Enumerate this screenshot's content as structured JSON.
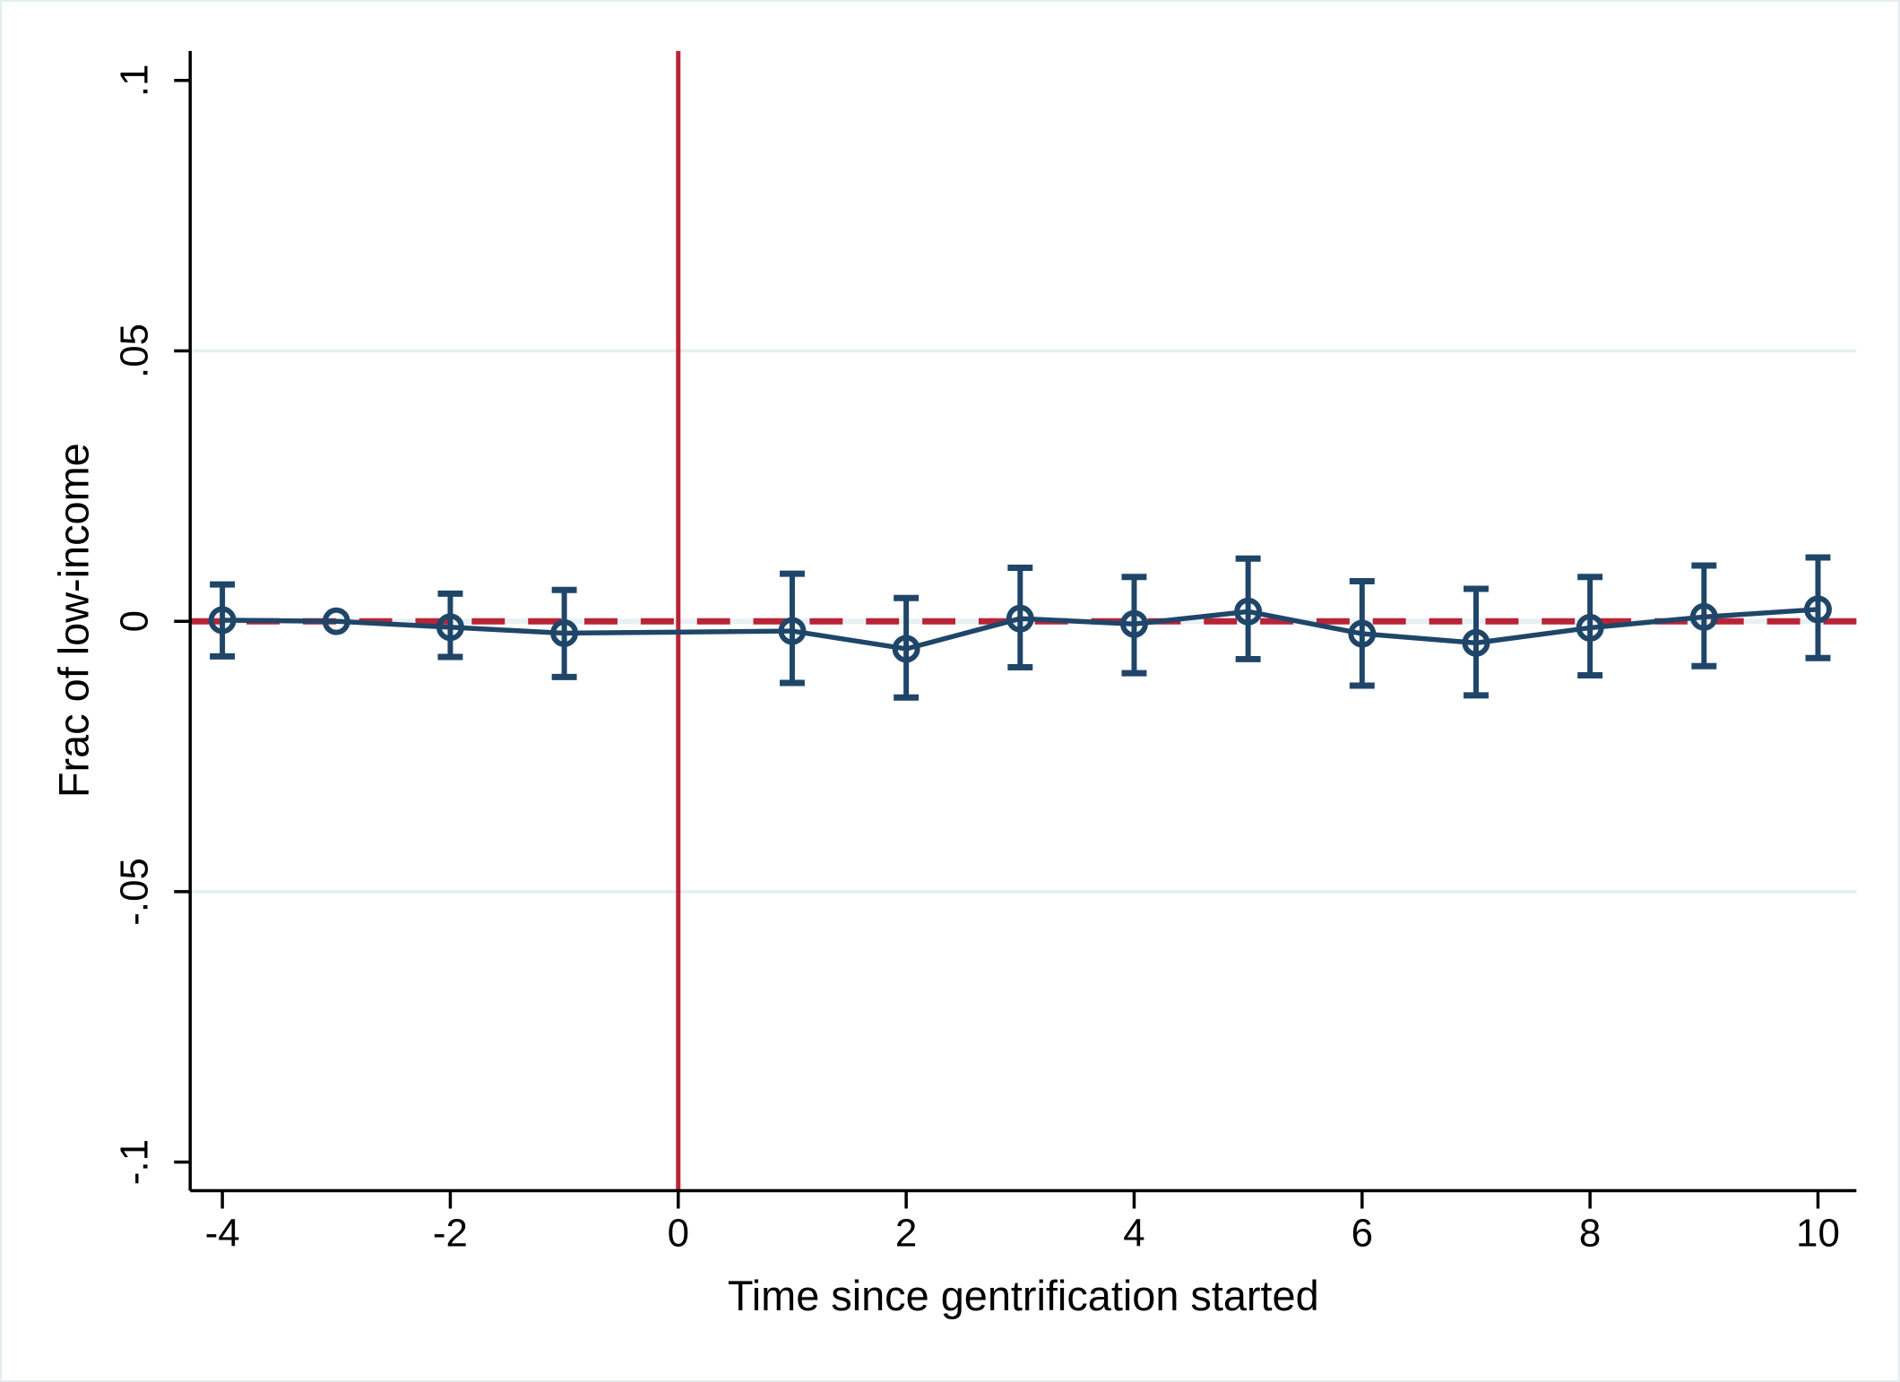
{
  "chart_data": {
    "type": "line",
    "title": "",
    "xlabel": "Time since gentrification started",
    "ylabel": "Frac of low-income",
    "legend": "none",
    "grid": "horizontal-light",
    "xlim": [
      -4.28,
      10.34
    ],
    "ylim": [
      -0.1054,
      0.1054
    ],
    "x_ticks": [
      -4,
      -2,
      0,
      2,
      4,
      6,
      8,
      10
    ],
    "x_tick_labels": [
      "-4",
      "-2",
      "0",
      "2",
      "4",
      "6",
      "8",
      "10"
    ],
    "y_ticks": [
      0.1,
      0.05,
      0,
      -0.05,
      -0.1
    ],
    "y_tick_labels": [
      ".1",
      ".05",
      "0",
      "-.05",
      "-.1"
    ],
    "grid_y_values": [
      0.05,
      -0.05
    ],
    "reference_vline_x": 0,
    "reference_hline_y": 0,
    "series": [
      {
        "name": "event-study-coefficient",
        "marker": "hollow-circle",
        "points": [
          {
            "x": -4,
            "y": 0.0002,
            "ci_low": -0.0065,
            "ci_high": 0.0068
          },
          {
            "x": -3,
            "y": 0.0,
            "ci_low": null,
            "ci_high": null
          },
          {
            "x": -2,
            "y": -0.0011,
            "ci_low": -0.0066,
            "ci_high": 0.0051
          },
          {
            "x": -1,
            "y": -0.0022,
            "ci_low": -0.0103,
            "ci_high": 0.0058
          },
          {
            "x": 1,
            "y": -0.0018,
            "ci_low": -0.0114,
            "ci_high": 0.0088
          },
          {
            "x": 2,
            "y": -0.0051,
            "ci_low": -0.0141,
            "ci_high": 0.0043
          },
          {
            "x": 3,
            "y": 0.0005,
            "ci_low": -0.0085,
            "ci_high": 0.0099
          },
          {
            "x": 4,
            "y": -0.0005,
            "ci_low": -0.0096,
            "ci_high": 0.0082
          },
          {
            "x": 5,
            "y": 0.0018,
            "ci_low": -0.007,
            "ci_high": 0.0116
          },
          {
            "x": 6,
            "y": -0.0023,
            "ci_low": -0.0119,
            "ci_high": 0.0074
          },
          {
            "x": 7,
            "y": -0.004,
            "ci_low": -0.0137,
            "ci_high": 0.006
          },
          {
            "x": 8,
            "y": -0.0012,
            "ci_low": -0.01,
            "ci_high": 0.0082
          },
          {
            "x": 9,
            "y": 0.0008,
            "ci_low": -0.0083,
            "ci_high": 0.0103
          },
          {
            "x": 10,
            "y": 0.0022,
            "ci_low": -0.0068,
            "ci_high": 0.0118
          }
        ]
      }
    ],
    "colors": {
      "series": "#1f4669",
      "reference_line": "#b82437",
      "grid": "#e6eff2",
      "zero_grid_underlay": "#e9f0f2",
      "axis": "#000000",
      "background": "#ffffff",
      "frame_border": "#e2edef"
    }
  }
}
